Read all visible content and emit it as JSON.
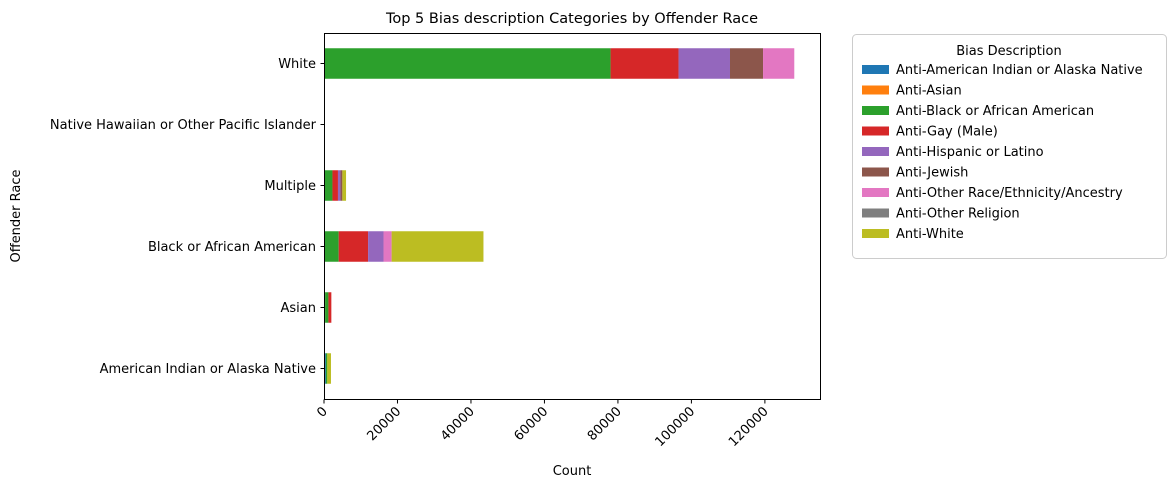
{
  "chart_data": {
    "type": "bar",
    "orientation": "horizontal",
    "stacked": true,
    "title": "Top 5 Bias description Categories by Offender Race",
    "xlabel": "Count",
    "ylabel": "Offender Race",
    "xlim": [
      0,
      135000
    ],
    "xticks": [
      0,
      20000,
      40000,
      60000,
      80000,
      100000,
      120000
    ],
    "grid": false,
    "legend": {
      "title": "Bias Description",
      "placement": "outside-right"
    },
    "categories": [
      "American Indian or Alaska Native",
      "Asian",
      "Black or African American",
      "Multiple",
      "Native Hawaiian or Other Pacific Islander",
      "White"
    ],
    "series": [
      {
        "name": "Anti-American Indian or Alaska Native",
        "color": "#1f77b4",
        "values": [
          500,
          0,
          0,
          0,
          0,
          0
        ]
      },
      {
        "name": "Anti-Asian",
        "color": "#ff7f0e",
        "values": [
          0,
          300,
          0,
          0,
          0,
          0
        ]
      },
      {
        "name": "Anti-Black or African American",
        "color": "#2ca02c",
        "values": [
          400,
          900,
          4000,
          2300,
          0,
          78000
        ]
      },
      {
        "name": "Anti-Gay (Male)",
        "color": "#d62728",
        "values": [
          0,
          800,
          8000,
          1500,
          0,
          18500
        ]
      },
      {
        "name": "Anti-Hispanic or Latino",
        "color": "#9467bd",
        "values": [
          0,
          0,
          4200,
          700,
          0,
          14000
        ]
      },
      {
        "name": "Anti-Jewish",
        "color": "#8c564b",
        "values": [
          0,
          0,
          0,
          500,
          0,
          9000
        ]
      },
      {
        "name": "Anti-Other Race/Ethnicity/Ancestry",
        "color": "#e377c2",
        "values": [
          0,
          0,
          2200,
          0,
          0,
          8500
        ]
      },
      {
        "name": "Anti-Other Religion",
        "color": "#7f7f7f",
        "values": [
          0,
          0,
          0,
          0,
          0,
          0
        ]
      },
      {
        "name": "Anti-White",
        "color": "#bcbd22",
        "values": [
          1000,
          0,
          25000,
          1000,
          0,
          0
        ]
      }
    ]
  }
}
